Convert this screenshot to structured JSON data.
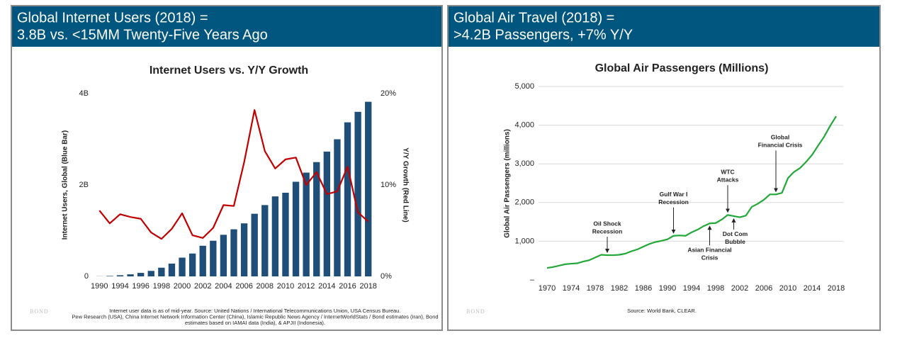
{
  "panels": [
    {
      "heading": [
        "Global Internet Users (2018) =",
        "3.8B vs. <15MM Twenty-Five Years Ago"
      ],
      "footnote": [
        "Internet user data is as of mid-year.  Source: United Nations / International Telecommunications Union, USA Census Bureau.",
        "Pew Research (USA), China Internet Network Information Center (China), Islamic Republic News Agency / InternetWorldStats / Bond estimates (Iran), Bond",
        "estimates based on IAMAI data (India), & APJII (Indonesia)."
      ],
      "logo": "BOND"
    },
    {
      "heading": [
        "Global Air Travel (2018) =",
        ">4.2B Passengers, +7% Y/Y"
      ],
      "footnote": [
        "Source: World Bank, CLEAR."
      ],
      "logo": "BOND"
    }
  ],
  "chart_data": [
    {
      "type": "bar",
      "title": "Internet Users vs. Y/Y Growth",
      "ylabel": "Internet Users, Global (Blue Bar)",
      "y2label": "Y/Y Growth (Red Line)",
      "categories": [
        "1990",
        null,
        "1994",
        null,
        "1996",
        null,
        "1998",
        null,
        "2000",
        null,
        "2002",
        null,
        "2004",
        null,
        "2006",
        null,
        "2008",
        null,
        "2010",
        null,
        "2012",
        null,
        "2014",
        null,
        "2016",
        null,
        "2018"
      ],
      "series": [
        {
          "type": "bar",
          "color": "#1f4e79",
          "values": [
            0.003,
            0.01,
            0.025,
            0.045,
            0.077,
            0.12,
            0.19,
            0.28,
            0.41,
            0.5,
            0.67,
            0.78,
            0.91,
            1.03,
            1.16,
            1.37,
            1.56,
            1.75,
            1.83,
            2.07,
            2.27,
            2.5,
            2.73,
            3.0,
            3.37,
            3.6,
            3.82
          ]
        },
        {
          "type": "line",
          "axis": "y2",
          "color": "#c00000",
          "values": [
            7.2,
            5.8,
            6.8,
            6.5,
            6.3,
            4.8,
            4.1,
            5.2,
            6.9,
            4.5,
            4.2,
            5.3,
            7.8,
            7.7,
            12.5,
            18.2,
            13.7,
            11.8,
            12.8,
            13.0,
            10.0,
            11.4,
            9.0,
            9.3,
            12.0,
            7.0,
            6.0
          ]
        }
      ],
      "ylim": [
        0,
        4
      ],
      "yticks": [
        0,
        {
          "value": 2,
          "label": "2B"
        },
        {
          "value": 4,
          "label": "4B"
        }
      ],
      "y2lim": [
        0,
        20
      ],
      "y2ticks": [
        {
          "value": 0,
          "label": "0%"
        },
        {
          "value": 10,
          "label": "10%"
        },
        {
          "value": 20,
          "label": "20%"
        }
      ],
      "grid": false
    },
    {
      "type": "line",
      "title": "Global Air Passengers (Millions)",
      "ylabel": "Global Air Passengers (millions)",
      "x": [
        1970,
        1971,
        1972,
        1973,
        1974,
        1975,
        1976,
        1977,
        1978,
        1979,
        1980,
        1981,
        1982,
        1983,
        1984,
        1985,
        1986,
        1987,
        1988,
        1989,
        1990,
        1991,
        1992,
        1993,
        1994,
        1995,
        1996,
        1997,
        1998,
        1999,
        2000,
        2001,
        2002,
        2003,
        2004,
        2005,
        2006,
        2007,
        2008,
        2009,
        2010,
        2011,
        2012,
        2013,
        2014,
        2015,
        2016,
        2017,
        2018
      ],
      "series": [
        {
          "color": "#22a838",
          "values": [
            310,
            333,
            370,
            405,
            420,
            430,
            475,
            510,
            580,
            650,
            640,
            640,
            650,
            680,
            740,
            790,
            860,
            930,
            980,
            1010,
            1050,
            1140,
            1150,
            1140,
            1230,
            1300,
            1390,
            1460,
            1470,
            1560,
            1680,
            1650,
            1620,
            1660,
            1890,
            1970,
            2070,
            2210,
            2210,
            2250,
            2630,
            2790,
            2890,
            3050,
            3230,
            3470,
            3700,
            3980,
            4230
          ]
        }
      ],
      "xlim": [
        1970,
        2018
      ],
      "xticks": [
        1970,
        1974,
        1978,
        1982,
        1986,
        1990,
        1994,
        1998,
        2002,
        2006,
        2010,
        2014,
        2018
      ],
      "ylim": [
        0,
        5000
      ],
      "yticks": [
        {
          "value": 0,
          "label": "–"
        },
        {
          "value": 1000,
          "label": "1,000"
        },
        {
          "value": 2000,
          "label": "2,000"
        },
        {
          "value": 3000,
          "label": "3,000"
        },
        {
          "value": 4000,
          "label": "4,000"
        },
        {
          "value": 5000,
          "label": "5,000"
        }
      ],
      "grid": true,
      "annotations": [
        {
          "lines": [
            "Oil Shock",
            "Recession"
          ],
          "x": 1980
        },
        {
          "lines": [
            "Gulf War I",
            "Recession"
          ],
          "x": 1991
        },
        {
          "lines": [
            "WTC",
            "Attacks"
          ],
          "x": 2000
        },
        {
          "lines": [
            "Global",
            "Financial Crisis"
          ],
          "x": 2008
        },
        {
          "lines": [
            "Asian Financial",
            "Crisis"
          ],
          "x": 1997
        },
        {
          "lines": [
            "Dot Com",
            "Bubble"
          ],
          "x": 2001
        }
      ]
    }
  ]
}
